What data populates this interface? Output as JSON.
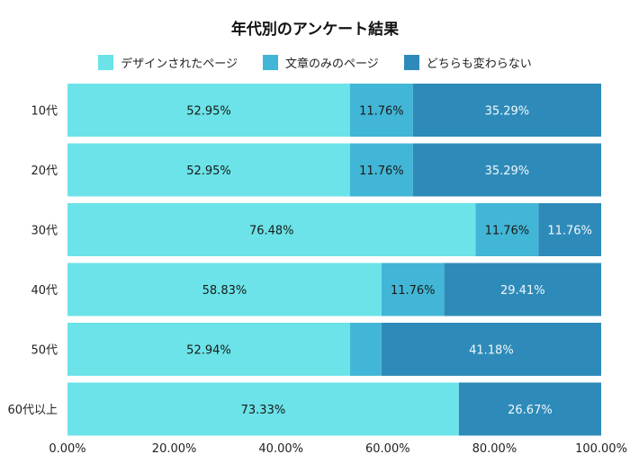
{
  "chart_data": {
    "type": "bar",
    "orientation": "horizontal",
    "stacked": true,
    "title": "年代別のアンケート結果",
    "categories": [
      "10代",
      "20代",
      "30代",
      "40代",
      "50代",
      "60代以上"
    ],
    "series": [
      {
        "name": "デザインされたページ",
        "color": "#6be3e8",
        "values": [
          52.95,
          52.95,
          76.48,
          58.83,
          52.94,
          73.33
        ],
        "labels": [
          "52.95%",
          "52.95%",
          "76.48%",
          "58.83%",
          "52.94%",
          "73.33%"
        ]
      },
      {
        "name": "文章のみのページ",
        "color": "#42b6d6",
        "values": [
          11.76,
          11.76,
          11.76,
          11.76,
          5.88,
          0
        ],
        "labels": [
          "11.76%",
          "11.76%",
          "11.76%",
          "11.76%",
          "",
          ""
        ]
      },
      {
        "name": "どちらも変わらない",
        "color": "#2e8bb9",
        "values": [
          35.29,
          35.29,
          11.76,
          29.41,
          41.18,
          26.67
        ],
        "labels": [
          "35.29%",
          "35.29%",
          "11.76%",
          "29.41%",
          "41.18%",
          "26.67%"
        ]
      }
    ],
    "xlim": [
      0,
      100
    ],
    "xticks": [
      "0.00%",
      "20.00%",
      "40.00%",
      "60.00%",
      "80.00%",
      "100.00%"
    ],
    "legend": "top",
    "grid": false
  }
}
